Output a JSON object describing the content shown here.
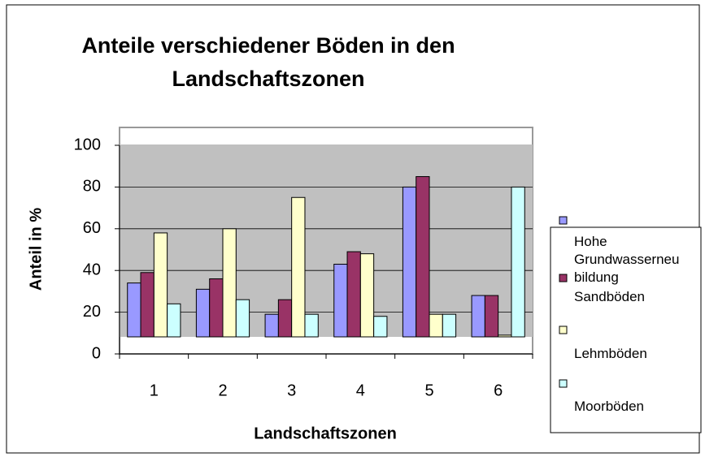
{
  "chart_data": {
    "type": "bar",
    "title": "Anteile verschiedener Böden in den Landschaftszonen",
    "x_label": "Landschaftszonen",
    "y_label": "Anteil in %",
    "categories": [
      "1",
      "2",
      "3",
      "4",
      "5",
      "6"
    ],
    "series": [
      {
        "name": "Hohe Grundwasserneubildung",
        "color": "#9999ff",
        "values": [
          34,
          31,
          19,
          43,
          80,
          28
        ]
      },
      {
        "name": "Sandböden",
        "color": "#993366",
        "values": [
          39,
          36,
          26,
          49,
          85,
          28
        ]
      },
      {
        "name": "Lehmböden",
        "color": "#ffffcc",
        "values": [
          58,
          60,
          75,
          48,
          19,
          9
        ]
      },
      {
        "name": "Moorböden",
        "color": "#ccffff",
        "values": [
          24,
          26,
          19,
          18,
          19,
          80
        ]
      }
    ],
    "ylim": [
      0,
      100
    ],
    "yticks": [
      0,
      20,
      40,
      60,
      80,
      100
    ],
    "grid": true,
    "legend": "right"
  }
}
